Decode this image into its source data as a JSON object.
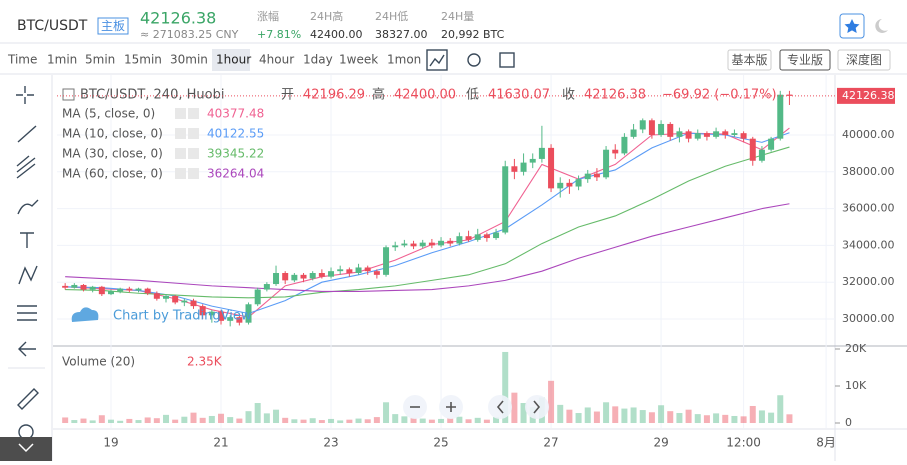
{
  "header": {
    "symbol": "BTC/USDT",
    "board": "主板",
    "price": "42126.38",
    "cny": "≈ 271083.25 CNY",
    "stats": [
      {
        "label": "涨幅",
        "value": "+7.81%"
      },
      {
        "label": "24H高",
        "value": "42400.00"
      },
      {
        "label": "24H低",
        "value": "38327.00"
      },
      {
        "label": "24H量",
        "value": "20,992 BTC"
      }
    ]
  },
  "toolbar": {
    "intervals": [
      "Time",
      "1min",
      "5min",
      "15min",
      "30min",
      "1hour",
      "4hour",
      "1day",
      "1week",
      "1mon"
    ],
    "active_interval": "1hour",
    "views": [
      "基本版",
      "专业版",
      "深度图"
    ],
    "active_view": "专业版"
  },
  "chart_data": {
    "type": "candlestick",
    "title": "BTC/USDT, 240, Huobi",
    "ohlc_legend": [
      {
        "label": "开",
        "value": "42196.29"
      },
      {
        "label": "高",
        "value": "42400.00"
      },
      {
        "label": "低",
        "value": "41630.07"
      },
      {
        "label": "收",
        "value": "42126.38"
      }
    ],
    "change": "−69.92 (−0.17%)",
    "watermark": "Chart by TradingView",
    "up_color": "#53b987",
    "down_color": "#eb4d5c",
    "grid": true,
    "x": [
      0,
      1,
      2,
      3,
      4,
      5,
      6,
      7,
      8,
      9,
      10,
      11,
      12,
      13,
      14,
      15,
      16,
      17,
      18,
      19,
      20,
      21,
      22,
      23,
      24,
      25,
      26,
      27,
      28,
      29,
      30,
      31,
      32,
      33,
      34,
      35,
      36,
      37,
      38,
      39,
      40,
      41,
      42,
      43,
      44,
      45,
      46,
      47,
      48,
      49,
      50,
      51,
      52,
      53,
      54,
      55,
      56,
      57,
      58,
      59,
      60,
      61,
      62,
      63,
      64,
      65,
      66,
      67,
      68,
      69,
      70,
      71,
      72,
      73,
      74,
      75,
      76,
      77,
      78,
      79
    ],
    "open": [
      31800,
      31700,
      31850,
      31600,
      31750,
      31350,
      31500,
      31650,
      31550,
      31650,
      31400,
      31100,
      31250,
      30900,
      31000,
      30700,
      30200,
      30400,
      29900,
      30100,
      29800,
      30800,
      31600,
      31900,
      32500,
      32100,
      32400,
      32200,
      32500,
      32300,
      32600,
      32700,
      32500,
      32800,
      32600,
      32400,
      33900,
      34000,
      34100,
      33950,
      34150,
      34000,
      34250,
      34100,
      34500,
      34300,
      34600,
      34400,
      34700,
      38300,
      38000,
      38500,
      38700,
      39300,
      37100,
      37400,
      37200,
      37600,
      37900,
      37700,
      39200,
      39000,
      39900,
      40300,
      40800,
      40000,
      40600,
      39900,
      40200,
      39800,
      40100,
      39900,
      40200,
      40000,
      40100,
      39800,
      38600,
      39200,
      39800,
      42196.29
    ],
    "high": [
      31950,
      31950,
      31900,
      31800,
      31800,
      31600,
      31700,
      31750,
      31700,
      31700,
      31500,
      31350,
      31300,
      31100,
      31100,
      30800,
      30500,
      30500,
      30200,
      30300,
      30900,
      31700,
      32000,
      32900,
      32600,
      32500,
      32500,
      32600,
      32700,
      32800,
      32900,
      32800,
      33000,
      32900,
      32700,
      34000,
      34200,
      34300,
      34250,
      34300,
      34350,
      34450,
      34400,
      34700,
      34800,
      34900,
      34700,
      34900,
      38600,
      38700,
      39000,
      39000,
      40500,
      39500,
      37700,
      37600,
      37800,
      38100,
      38200,
      39400,
      39500,
      40100,
      40600,
      40900,
      40900,
      40800,
      40700,
      40400,
      40300,
      40300,
      40200,
      40400,
      40300,
      40300,
      40200,
      39900,
      39400,
      39900,
      42400,
      42400
    ],
    "low": [
      31600,
      31650,
      31500,
      31450,
      31250,
      31300,
      31400,
      31450,
      31450,
      31300,
      31000,
      30900,
      30800,
      30700,
      30550,
      30000,
      29800,
      29700,
      29600,
      29650,
      29700,
      30700,
      31500,
      31800,
      31900,
      32000,
      32000,
      32100,
      32200,
      32200,
      32400,
      32300,
      32400,
      32400,
      32200,
      32300,
      33700,
      33900,
      33800,
      33850,
      33850,
      33900,
      33950,
      34000,
      34200,
      34200,
      34200,
      34300,
      34600,
      37600,
      37800,
      38200,
      38500,
      36900,
      36600,
      36800,
      37000,
      37400,
      37500,
      37600,
      38700,
      38900,
      39800,
      40100,
      39800,
      39900,
      39700,
      39600,
      39600,
      39700,
      39700,
      39800,
      39800,
      39900,
      39600,
      38330,
      38500,
      39100,
      39700,
      41630.07
    ],
    "close": [
      31700,
      31850,
      31600,
      31750,
      31350,
      31500,
      31650,
      31550,
      31650,
      31400,
      31100,
      31250,
      30900,
      31000,
      30700,
      30200,
      30400,
      29900,
      30100,
      29800,
      30800,
      31600,
      31900,
      32500,
      32100,
      32400,
      32200,
      32500,
      32300,
      32600,
      32700,
      32500,
      32800,
      32600,
      32400,
      33900,
      34000,
      34100,
      33950,
      34150,
      34000,
      34250,
      34100,
      34500,
      34300,
      34600,
      34400,
      34700,
      38300,
      38000,
      38500,
      38700,
      39300,
      37100,
      37400,
      37200,
      37600,
      37900,
      37700,
      39200,
      39000,
      39900,
      40300,
      40800,
      40000,
      40600,
      39900,
      40200,
      39800,
      40100,
      39900,
      40200,
      40000,
      40100,
      39800,
      38600,
      39200,
      39800,
      42190,
      42126.38
    ],
    "xlim": [
      -0.89,
      83.97
    ],
    "xticks": [
      {
        "value": 5,
        "label": "19"
      },
      {
        "value": 17,
        "label": "21"
      },
      {
        "value": 29,
        "label": "23"
      },
      {
        "value": 41,
        "label": "25"
      },
      {
        "value": 53,
        "label": "27"
      },
      {
        "value": 65,
        "label": "29"
      },
      {
        "value": 74,
        "label": "12:00"
      },
      {
        "value": 83,
        "label": "8月"
      }
    ],
    "ylim": [
      28587,
      43261
    ],
    "yticks": [
      {
        "value": 30000,
        "label": "30000.00"
      },
      {
        "value": 32000,
        "label": "32000.00"
      },
      {
        "value": 34000,
        "label": "34000.00"
      },
      {
        "value": 36000,
        "label": "36000.00"
      },
      {
        "value": 38000,
        "label": "38000.00"
      },
      {
        "value": 40000,
        "label": "40000.00"
      }
    ],
    "indicators": [
      {
        "name": "MA (5, close, 0)",
        "color": "#f06292",
        "x": [
          0,
          4,
          8,
          12,
          16,
          20,
          24,
          28,
          32,
          36,
          40,
          44,
          48,
          52,
          56,
          60,
          64,
          68,
          72,
          76,
          79
        ],
        "values": [
          31750,
          31650,
          31550,
          31100,
          30500,
          30100,
          31800,
          32300,
          32550,
          33200,
          34050,
          34300,
          35300,
          38400,
          37600,
          38400,
          40000,
          40100,
          40050,
          39200,
          40377.48
        ]
      },
      {
        "name": "MA (10, close, 0)",
        "color": "#5b9cf6",
        "x": [
          0,
          4,
          8,
          12,
          16,
          20,
          24,
          28,
          32,
          36,
          40,
          44,
          48,
          52,
          56,
          60,
          64,
          68,
          72,
          76,
          79
        ],
        "values": [
          31750,
          31700,
          31550,
          31250,
          30700,
          30300,
          31000,
          32000,
          32400,
          32900,
          33600,
          34200,
          34900,
          36200,
          37600,
          38100,
          39300,
          40100,
          40000,
          39600,
          40122.55
        ]
      },
      {
        "name": "MA (30, close, 0)",
        "color": "#66bb6a",
        "x": [
          0,
          4,
          8,
          12,
          16,
          20,
          24,
          28,
          32,
          36,
          40,
          44,
          48,
          52,
          56,
          60,
          64,
          68,
          72,
          76,
          79
        ],
        "values": [
          31600,
          31550,
          31400,
          31300,
          31200,
          31150,
          31200,
          31450,
          31600,
          31800,
          32100,
          32400,
          33000,
          34100,
          35000,
          35600,
          36500,
          37500,
          38300,
          38900,
          39345.22
        ]
      },
      {
        "name": "MA (60, close, 0)",
        "color": "#ab47bc",
        "x": [
          0,
          4,
          8,
          12,
          16,
          20,
          24,
          28,
          32,
          36,
          40,
          44,
          48,
          52,
          56,
          60,
          64,
          68,
          72,
          76,
          79
        ],
        "values": [
          32300,
          32200,
          32100,
          31950,
          31800,
          31700,
          31600,
          31500,
          31500,
          31550,
          31600,
          31800,
          32100,
          32600,
          33300,
          33900,
          34500,
          35000,
          35500,
          36000,
          36264.04
        ]
      }
    ],
    "volume": {
      "name": "Volume (20)",
      "values": [
        1500,
        800,
        1200,
        700,
        2100,
        900,
        600,
        1100,
        800,
        1500,
        1300,
        2200,
        900,
        1700,
        2800,
        1400,
        1900,
        2500,
        1600,
        1200,
        3200,
        5400,
        2600,
        3600,
        1400,
        1000,
        900,
        1300,
        800,
        1100,
        700,
        900,
        1200,
        1000,
        1600,
        5600,
        2400,
        1800,
        1400,
        1200,
        900,
        1100,
        1300,
        1700,
        1000,
        1400,
        900,
        1600,
        19200,
        8200,
        5400,
        4300,
        6900,
        11400,
        4900,
        3600,
        2700,
        4200,
        3100,
        5600,
        4500,
        3900,
        4200,
        3500,
        2900,
        4800,
        3200,
        2700,
        3600,
        2400,
        2100,
        2600,
        2200,
        1900,
        1800,
        4600,
        3400,
        2800,
        7500,
        2350
      ],
      "value_labels": [
        null,
        null,
        null,
        null,
        null,
        null,
        null,
        null,
        null,
        null,
        null,
        null,
        null,
        null,
        null,
        null,
        null,
        null,
        null,
        null,
        null,
        null,
        null,
        null,
        null,
        null,
        null,
        null,
        null,
        null,
        null,
        null,
        null,
        null,
        null,
        null,
        null,
        null,
        null,
        null,
        null,
        null,
        null,
        null,
        null,
        null,
        null,
        null,
        null,
        null,
        null,
        null,
        null,
        null,
        null,
        null,
        null,
        null,
        null,
        null,
        null,
        null,
        null,
        null,
        null,
        null,
        null,
        null,
        null,
        null,
        null,
        null,
        null,
        null,
        null,
        null,
        null,
        null,
        null,
        "2.35K"
      ],
      "ylim": [
        -1350,
        20540
      ],
      "yticks": [
        0,
        {
          "value": 10000,
          "label": "10K"
        },
        {
          "value": 20000,
          "label": "20K"
        }
      ]
    }
  }
}
